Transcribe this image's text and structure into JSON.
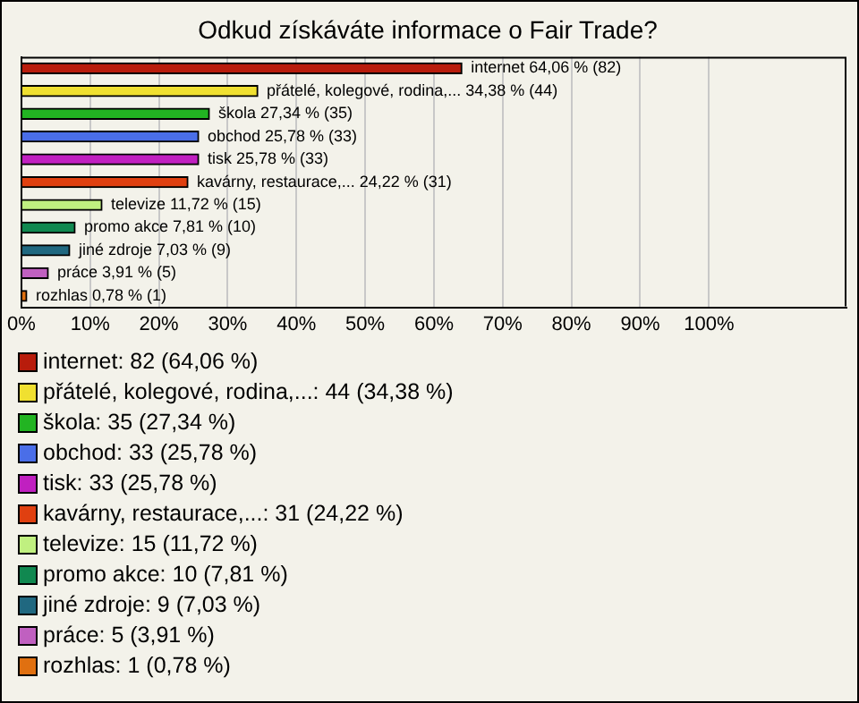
{
  "chart_data": {
    "type": "bar",
    "orientation": "horizontal",
    "title": "Odkud získáváte informace o Fair Trade?",
    "categories": [
      null,
      null,
      null,
      null,
      null,
      null,
      null,
      null,
      null,
      null,
      null
    ],
    "values": [
      64.06,
      34.38,
      27.34,
      25.78,
      25.78,
      24.22,
      11.72,
      7.81,
      7.03,
      3.91,
      0.78
    ],
    "colors": [
      "#b81c0c",
      "#f0e030",
      "#22b422",
      "#4a6ee8",
      "#c020c0",
      "#e04010",
      "#c0f080",
      "#108850",
      "#206880",
      "#c060c0",
      "#e07010"
    ],
    "value_labels": [
      "internet 64,06 % (82)",
      "přátelé, kolegové, rodina,... 34,38 % (44)",
      "škola 27,34 % (35)",
      "obchod 25,78 % (33)",
      "tisk 25,78 % (33)",
      "kavárny, restaurace,... 24,22 % (31)",
      "televize 11,72 % (15)",
      "promo akce 7,81 % (10)",
      "jiné zdroje 7,03 % (9)",
      "práce 3,91 % (5)",
      "rozhlas 0,78 % (1)"
    ],
    "xlim": [
      0,
      120
    ],
    "xticks": [
      {
        "value": 0,
        "label": "0%"
      },
      {
        "value": 10,
        "label": "10%"
      },
      {
        "value": 20,
        "label": "20%"
      },
      {
        "value": 30,
        "label": "30%"
      },
      {
        "value": 40,
        "label": "40%"
      },
      {
        "value": 50,
        "label": "50%"
      },
      {
        "value": 60,
        "label": "60%"
      },
      {
        "value": 70,
        "label": "70%"
      },
      {
        "value": 80,
        "label": "80%"
      },
      {
        "value": 90,
        "label": "90%"
      },
      {
        "value": 100,
        "label": "100%"
      }
    ],
    "grid": "x",
    "annotations": [
      "internet: 82 (64,06 %)",
      "přátelé, kolegové, rodina,...: 44 (34,38 %)",
      "škola: 35 (27,34 %)",
      "obchod: 33 (25,78 %)",
      "tisk: 33 (25,78 %)",
      "kavárny, restaurace,...: 31 (24,22 %)",
      "televize: 15 (11,72 %)",
      "promo akce: 10 (7,81 %)",
      "jiné zdroje: 9 (7,03 %)",
      "práce: 5 (3,91 %)",
      "rozhlas: 1 (0,78 %)"
    ]
  }
}
